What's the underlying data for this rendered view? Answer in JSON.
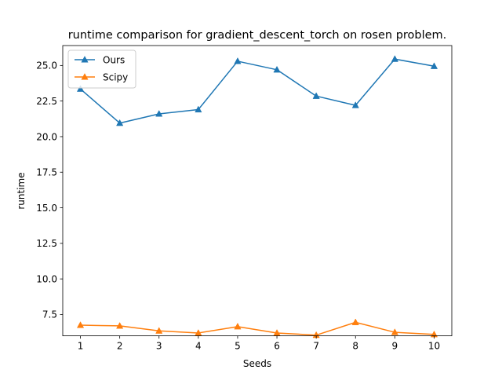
{
  "chart_data": {
    "type": "line",
    "title": "runtime comparison for gradient_descent_torch on rosen problem.",
    "xlabel": "Seeds",
    "ylabel": "runtime",
    "x": [
      1,
      2,
      3,
      4,
      5,
      6,
      7,
      8,
      9,
      10
    ],
    "xlim": [
      0.55,
      10.45
    ],
    "ylim": [
      6.0,
      26.4
    ],
    "yticks": [
      7.5,
      10.0,
      12.5,
      15.0,
      17.5,
      20.0,
      22.5,
      25.0
    ],
    "ytick_labels": [
      "7.5",
      "10.0",
      "12.5",
      "15.0",
      "17.5",
      "20.0",
      "22.5",
      "25.0"
    ],
    "xtick_labels": [
      "1",
      "2",
      "3",
      "4",
      "5",
      "6",
      "7",
      "8",
      "9",
      "10"
    ],
    "grid": false,
    "legend_position": "top-left",
    "marker": "triangle-up",
    "series": [
      {
        "name": "Ours",
        "color": "#1f77b4",
        "values": [
          23.35,
          20.95,
          21.6,
          21.9,
          25.3,
          24.7,
          22.85,
          22.2,
          25.45,
          24.95
        ]
      },
      {
        "name": "Scipy",
        "color": "#ff7f0e",
        "values": [
          6.75,
          6.7,
          6.35,
          6.2,
          6.65,
          6.2,
          6.05,
          6.95,
          6.25,
          6.1
        ]
      }
    ]
  }
}
